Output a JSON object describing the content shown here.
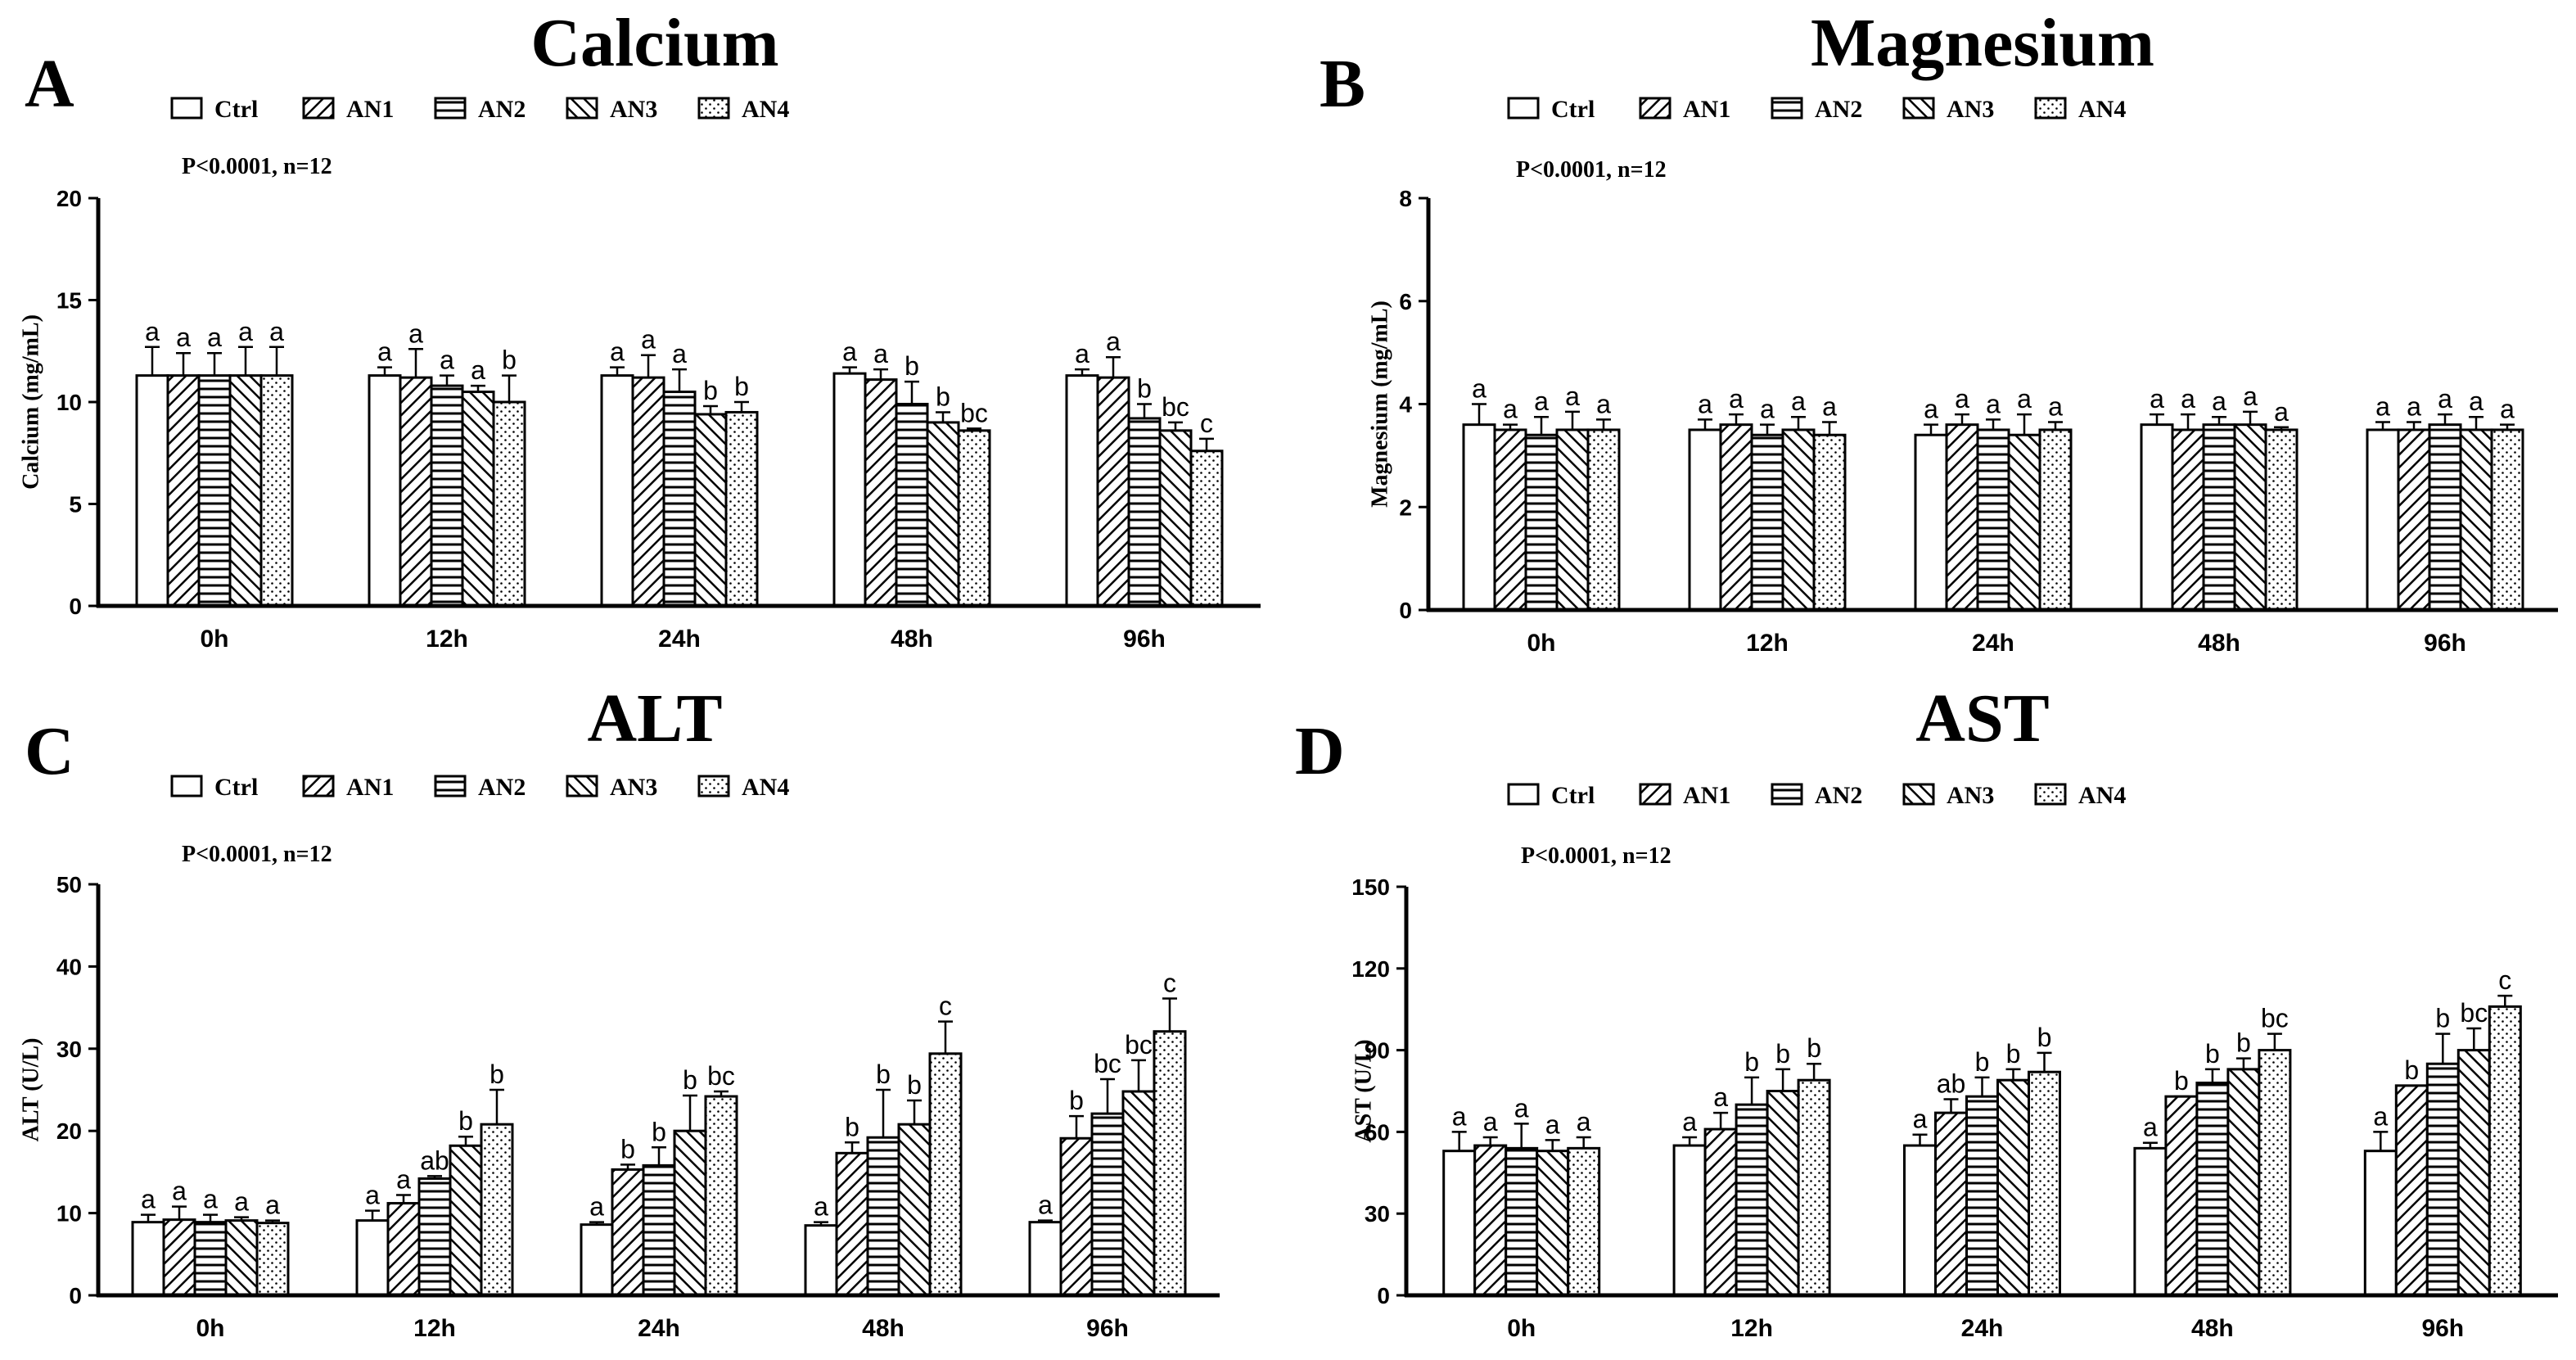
{
  "chart_data": [
    {
      "type": "bar",
      "panel": "A",
      "title": "Calcium",
      "xlabel": "",
      "ylabel": "Calcium (mg/mL)",
      "ylim": [
        0,
        20
      ],
      "yticks": [
        0,
        5,
        10,
        15,
        20
      ],
      "annotation": "P<0.0001, n=12",
      "categories": [
        "0h",
        "12h",
        "24h",
        "48h",
        "96h"
      ],
      "series": [
        {
          "name": "Ctrl",
          "pattern": "plain",
          "values": [
            11.3,
            11.3,
            11.3,
            11.4,
            11.3
          ],
          "errors": [
            1.4,
            0.4,
            0.4,
            0.3,
            0.3
          ],
          "letters": [
            "a",
            "a",
            "a",
            "a",
            "a"
          ]
        },
        {
          "name": "AN1",
          "pattern": "diag",
          "values": [
            11.3,
            11.2,
            11.2,
            11.1,
            11.2
          ],
          "errors": [
            1.1,
            1.4,
            1.1,
            0.5,
            1.0
          ],
          "letters": [
            "a",
            "a",
            "a",
            "a",
            "a"
          ]
        },
        {
          "name": "AN2",
          "pattern": "horizontal",
          "values": [
            11.3,
            10.8,
            10.5,
            9.9,
            9.2
          ],
          "errors": [
            1.1,
            0.5,
            1.1,
            1.1,
            0.7
          ],
          "letters": [
            "a",
            "a",
            "a",
            "b",
            "b"
          ]
        },
        {
          "name": "AN3",
          "pattern": "backdiag",
          "values": [
            11.3,
            10.5,
            9.4,
            9.0,
            8.6
          ],
          "errors": [
            1.4,
            0.3,
            0.4,
            0.5,
            0.4
          ],
          "letters": [
            "a",
            "a",
            "b",
            "b",
            "bc"
          ]
        },
        {
          "name": "AN4",
          "pattern": "dots",
          "values": [
            11.3,
            10.0,
            9.5,
            8.6,
            7.6
          ],
          "errors": [
            1.4,
            1.3,
            0.5,
            0.1,
            0.6
          ],
          "letters": [
            "a",
            "b",
            "b",
            "bc",
            "c"
          ]
        }
      ]
    },
    {
      "type": "bar",
      "panel": "B",
      "title": "Magnesium",
      "xlabel": "",
      "ylabel": "Magnesium (mg/mL)",
      "ylim": [
        0,
        8
      ],
      "yticks": [
        0,
        2,
        4,
        6,
        8
      ],
      "annotation": "P<0.0001, n=12",
      "categories": [
        "0h",
        "12h",
        "24h",
        "48h",
        "96h"
      ],
      "series": [
        {
          "name": "Ctrl",
          "pattern": "plain",
          "values": [
            3.6,
            3.5,
            3.4,
            3.6,
            3.5
          ],
          "errors": [
            0.4,
            0.2,
            0.2,
            0.2,
            0.15
          ],
          "letters": [
            "a",
            "a",
            "a",
            "a",
            "a"
          ]
        },
        {
          "name": "AN1",
          "pattern": "diag",
          "values": [
            3.5,
            3.6,
            3.6,
            3.5,
            3.5
          ],
          "errors": [
            0.1,
            0.2,
            0.2,
            0.3,
            0.15
          ],
          "letters": [
            "a",
            "a",
            "a",
            "a",
            "a"
          ]
        },
        {
          "name": "AN2",
          "pattern": "horizontal",
          "values": [
            3.4,
            3.4,
            3.5,
            3.6,
            3.6
          ],
          "errors": [
            0.35,
            0.2,
            0.2,
            0.15,
            0.2
          ],
          "letters": [
            "a",
            "a",
            "a",
            "a",
            "a"
          ]
        },
        {
          "name": "AN3",
          "pattern": "backdiag",
          "values": [
            3.5,
            3.5,
            3.4,
            3.6,
            3.5
          ],
          "errors": [
            0.35,
            0.25,
            0.4,
            0.25,
            0.25
          ],
          "letters": [
            "a",
            "a",
            "a",
            "a",
            "a"
          ]
        },
        {
          "name": "AN4",
          "pattern": "dots",
          "values": [
            3.5,
            3.4,
            3.5,
            3.5,
            3.5
          ],
          "errors": [
            0.2,
            0.25,
            0.15,
            0.05,
            0.1
          ],
          "letters": [
            "a",
            "a",
            "a",
            "a",
            "a"
          ]
        }
      ]
    },
    {
      "type": "bar",
      "panel": "C",
      "title": "ALT",
      "xlabel": "",
      "ylabel": "ALT (U/L)",
      "ylim": [
        0,
        50
      ],
      "yticks": [
        0,
        10,
        20,
        30,
        40,
        50
      ],
      "annotation": "P<0.0001, n=12",
      "categories": [
        "0h",
        "12h",
        "24h",
        "48h",
        "96h"
      ],
      "series": [
        {
          "name": "Ctrl",
          "pattern": "plain",
          "values": [
            8.9,
            9.1,
            8.6,
            8.5,
            8.9
          ],
          "errors": [
            0.9,
            1.2,
            0.3,
            0.4,
            0.2
          ],
          "letters": [
            "a",
            "a",
            "a",
            "a",
            "a"
          ]
        },
        {
          "name": "AN1",
          "pattern": "diag",
          "values": [
            9.2,
            11.2,
            15.3,
            17.3,
            19.1
          ],
          "errors": [
            1.6,
            1.0,
            0.6,
            1.3,
            2.7
          ],
          "letters": [
            "a",
            "a",
            "b",
            "b",
            "b"
          ]
        },
        {
          "name": "AN2",
          "pattern": "horizontal",
          "values": [
            8.9,
            14.2,
            15.8,
            19.2,
            22.1
          ],
          "errors": [
            0.9,
            0.3,
            2.2,
            5.8,
            4.2
          ],
          "letters": [
            "a",
            "ab",
            "b",
            "b",
            "bc"
          ]
        },
        {
          "name": "AN3",
          "pattern": "backdiag",
          "values": [
            9.1,
            18.2,
            20.0,
            20.8,
            24.8
          ],
          "errors": [
            0.4,
            1.1,
            4.3,
            2.9,
            3.8
          ],
          "letters": [
            "a",
            "b",
            "b",
            "b",
            "bc"
          ]
        },
        {
          "name": "AN4",
          "pattern": "dots",
          "values": [
            8.8,
            20.8,
            24.2,
            29.4,
            32.1
          ],
          "errors": [
            0.3,
            4.2,
            0.6,
            3.9,
            4.0
          ],
          "letters": [
            "a",
            "b",
            "bc",
            "c",
            "c"
          ]
        }
      ]
    },
    {
      "type": "bar",
      "panel": "D",
      "title": "AST",
      "xlabel": "",
      "ylabel": "AST (U/L)",
      "ylim": [
        0,
        150
      ],
      "yticks": [
        0,
        30,
        60,
        90,
        120,
        150
      ],
      "annotation": "P<0.0001, n=12",
      "categories": [
        "0h",
        "12h",
        "24h",
        "48h",
        "96h"
      ],
      "series": [
        {
          "name": "Ctrl",
          "pattern": "plain",
          "values": [
            53,
            55,
            55,
            54,
            53
          ],
          "errors": [
            7,
            3,
            4,
            2,
            7
          ],
          "letters": [
            "a",
            "a",
            "a",
            "a",
            "a"
          ]
        },
        {
          "name": "AN1",
          "pattern": "diag",
          "values": [
            55,
            61,
            67,
            73,
            77
          ],
          "errors": [
            3,
            6,
            5,
            0,
            0
          ],
          "letters": [
            "a",
            "a",
            "ab",
            "b",
            "b"
          ]
        },
        {
          "name": "AN2",
          "pattern": "horizontal",
          "values": [
            54,
            70,
            73,
            78,
            85
          ],
          "errors": [
            9,
            10,
            7,
            5,
            11
          ],
          "letters": [
            "a",
            "b",
            "b",
            "b",
            "b"
          ]
        },
        {
          "name": "AN3",
          "pattern": "backdiag",
          "values": [
            53,
            75,
            79,
            83,
            90
          ],
          "errors": [
            4,
            8,
            4,
            4,
            8
          ],
          "letters": [
            "a",
            "b",
            "b",
            "b",
            "bc"
          ]
        },
        {
          "name": "AN4",
          "pattern": "dots",
          "values": [
            54,
            79,
            82,
            90,
            106
          ],
          "errors": [
            4,
            6,
            7,
            6,
            4
          ],
          "letters": [
            "a",
            "b",
            "b",
            "bc",
            "c"
          ]
        }
      ]
    }
  ]
}
